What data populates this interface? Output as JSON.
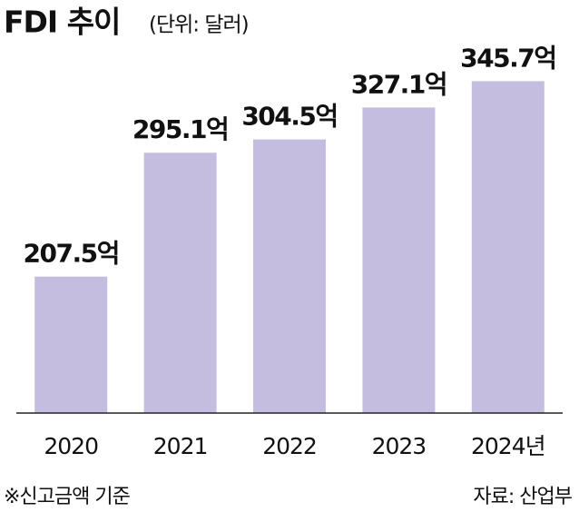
{
  "chart_data": {
    "type": "bar",
    "title": "FDI 추이",
    "subtitle": "(단위: 달러)",
    "categories": [
      "2020",
      "2021",
      "2022",
      "2023",
      "2024년"
    ],
    "values": [
      207.5,
      295.1,
      304.5,
      327.1,
      345.7
    ],
    "value_labels": [
      "207.5억",
      "295.1억",
      "304.5억",
      "327.1억",
      "345.7억"
    ],
    "color": "#c5bddf",
    "ylim": [
      111,
      380
    ],
    "note": "※신고금액 기준",
    "source": "자료: 산업부"
  }
}
